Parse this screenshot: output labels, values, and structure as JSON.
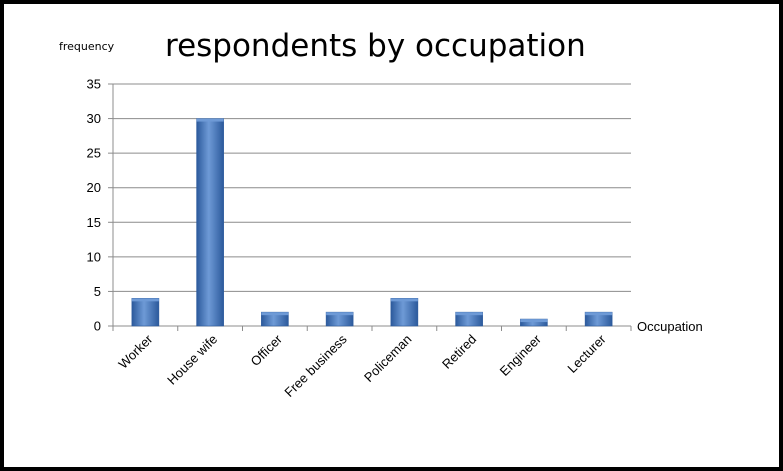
{
  "chart_data": {
    "type": "bar",
    "title": "respondents by occupation",
    "ylabel": "frequency",
    "xlabel": "Occupation",
    "categories": [
      "Worker",
      "House wife",
      "Officer",
      "Free business",
      "Policeman",
      "Retired",
      "Engineer",
      "Lecturer"
    ],
    "values": [
      4,
      30,
      2,
      2,
      4,
      2,
      1,
      2
    ],
    "ylim": [
      0,
      35
    ],
    "yticks": [
      "0",
      "5",
      "10",
      "15",
      "20",
      "25",
      "30",
      "35"
    ],
    "grid": true,
    "legend": "none",
    "colors": {
      "bar": "#4a7bc4",
      "bar_dark": "#2c5a9c",
      "bar_light": "#6e9ad6",
      "grid": "#8c8c8c",
      "axis": "#8c8c8c"
    }
  }
}
